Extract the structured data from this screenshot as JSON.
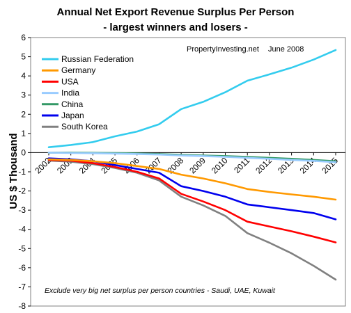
{
  "chart_data": {
    "type": "line",
    "title": "Annual Net Export Revenue Surplus Per Person",
    "subtitle": "- largest winners and losers -",
    "ylabel": "US $ Thousand",
    "xlabel": "",
    "x": [
      "2002",
      "2003",
      "2004",
      "2005",
      "2006",
      "2007",
      "2008",
      "2009",
      "2010",
      "2011",
      "2012",
      "2013",
      "2014",
      "2015"
    ],
    "ylim": [
      -8,
      6
    ],
    "yticks": [
      "6",
      "5",
      "4",
      "3",
      "2",
      "1",
      "0",
      "-1",
      "-2",
      "-3",
      "-4",
      "-5",
      "-6",
      "-7",
      "-8"
    ],
    "grid": false,
    "legend_position": "top-left",
    "series": [
      {
        "name": "Russian Federation",
        "color": "#33ccee",
        "values": [
          0.28,
          0.4,
          0.55,
          0.85,
          1.1,
          1.48,
          2.27,
          2.65,
          3.15,
          3.75,
          4.08,
          4.43,
          4.85,
          5.35
        ]
      },
      {
        "name": "Germany",
        "color": "#ff9900",
        "values": [
          -0.35,
          -0.38,
          -0.45,
          -0.55,
          -0.7,
          -0.85,
          -1.15,
          -1.35,
          -1.6,
          -1.9,
          -2.05,
          -2.18,
          -2.3,
          -2.45
        ]
      },
      {
        "name": "USA",
        "color": "#ff0000",
        "values": [
          -0.38,
          -0.42,
          -0.55,
          -0.75,
          -1.0,
          -1.35,
          -2.15,
          -2.55,
          -3.0,
          -3.6,
          -3.85,
          -4.1,
          -4.38,
          -4.68
        ]
      },
      {
        "name": "India",
        "color": "#99ccff",
        "values": [
          0.0,
          -0.02,
          -0.03,
          -0.05,
          -0.07,
          -0.1,
          -0.15,
          -0.18,
          -0.22,
          -0.27,
          -0.32,
          -0.38,
          -0.43,
          -0.5
        ]
      },
      {
        "name": "China",
        "color": "#339966",
        "values": [
          0.0,
          0.0,
          -0.01,
          -0.02,
          -0.04,
          -0.07,
          -0.12,
          -0.15,
          -0.18,
          -0.22,
          -0.27,
          -0.32,
          -0.38,
          -0.45
        ]
      },
      {
        "name": "Japan",
        "color": "#0000ee",
        "values": [
          -0.3,
          -0.35,
          -0.45,
          -0.65,
          -0.85,
          -1.05,
          -1.75,
          -2.0,
          -2.3,
          -2.7,
          -2.85,
          -3.0,
          -3.15,
          -3.48
        ]
      },
      {
        "name": "South Korea",
        "color": "#808080",
        "values": [
          -0.42,
          -0.47,
          -0.6,
          -0.8,
          -1.05,
          -1.45,
          -2.3,
          -2.75,
          -3.3,
          -4.2,
          -4.7,
          -5.25,
          -5.9,
          -6.62
        ]
      }
    ],
    "annotations": {
      "source": "PropertyInvesting.net",
      "date": "June 2008",
      "note": "Exclude very big net surplus per person countries - Saudi, UAE, Kuwait"
    }
  }
}
